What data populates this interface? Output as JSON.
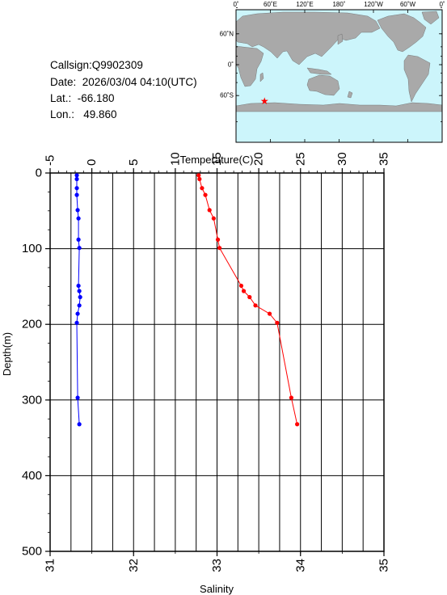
{
  "info": {
    "callsign": "Callsign:Q9902309",
    "date": "Date:  2026/03/04 04:10(UTC)",
    "lat": "Lat.:  -66.180",
    "lon": "Lon.:   49.860"
  },
  "map": {
    "top_labels": [
      "0˚",
      "60˚E",
      "120˚E",
      "180˚",
      "120˚W",
      "60˚W",
      "0˚"
    ],
    "left_labels": [
      "60˚N",
      "0˚",
      "60˚S"
    ],
    "marker": {
      "lat": -66.18,
      "lon": 49.86
    },
    "colors": {
      "ocean": "#ccf5fb",
      "land": "#a9a9a9",
      "marker": "#ff0000"
    }
  },
  "chart_data": {
    "type": "scatter",
    "ylabel": "Depth(m)",
    "xlabel_top": "Temperature(C)",
    "xlabel_bottom": "Salinity",
    "ylim": [
      0,
      500
    ],
    "y_reversed": true,
    "temperature_lim": [
      -5,
      35
    ],
    "salinity_lim": [
      31,
      35
    ],
    "temperature_ticks": [
      "-5",
      "0",
      "5",
      "10",
      "15",
      "20",
      "25",
      "30",
      "35"
    ],
    "salinity_ticks": [
      "31",
      "32",
      "33",
      "34",
      "35"
    ],
    "depth_ticks": [
      "0",
      "100",
      "200",
      "300",
      "400",
      "500"
    ],
    "grid": true,
    "series": [
      {
        "axis": "temperature",
        "color": "#ff0000",
        "points": [
          {
            "x": 12.8,
            "y": 3
          },
          {
            "x": 12.9,
            "y": 8
          },
          {
            "x": 13.2,
            "y": 20
          },
          {
            "x": 13.6,
            "y": 29
          },
          {
            "x": 14.1,
            "y": 49
          },
          {
            "x": 14.6,
            "y": 60
          },
          {
            "x": 15.1,
            "y": 88
          },
          {
            "x": 15.3,
            "y": 99
          },
          {
            "x": 17.9,
            "y": 149
          },
          {
            "x": 18.2,
            "y": 156
          },
          {
            "x": 18.9,
            "y": 164
          },
          {
            "x": 19.6,
            "y": 175
          },
          {
            "x": 21.3,
            "y": 186
          },
          {
            "x": 22.2,
            "y": 198
          },
          {
            "x": 23.9,
            "y": 297
          },
          {
            "x": 24.6,
            "y": 332
          }
        ]
      },
      {
        "axis": "salinity",
        "color": "#0000ff",
        "points": [
          {
            "x": 31.32,
            "y": 3
          },
          {
            "x": 31.32,
            "y": 8
          },
          {
            "x": 31.32,
            "y": 20
          },
          {
            "x": 31.32,
            "y": 29
          },
          {
            "x": 31.33,
            "y": 49
          },
          {
            "x": 31.34,
            "y": 60
          },
          {
            "x": 31.34,
            "y": 88
          },
          {
            "x": 31.35,
            "y": 99
          },
          {
            "x": 31.34,
            "y": 149
          },
          {
            "x": 31.35,
            "y": 156
          },
          {
            "x": 31.36,
            "y": 164
          },
          {
            "x": 31.35,
            "y": 175
          },
          {
            "x": 31.33,
            "y": 186
          },
          {
            "x": 31.32,
            "y": 198
          },
          {
            "x": 31.33,
            "y": 297
          },
          {
            "x": 31.35,
            "y": 332
          }
        ]
      }
    ]
  }
}
